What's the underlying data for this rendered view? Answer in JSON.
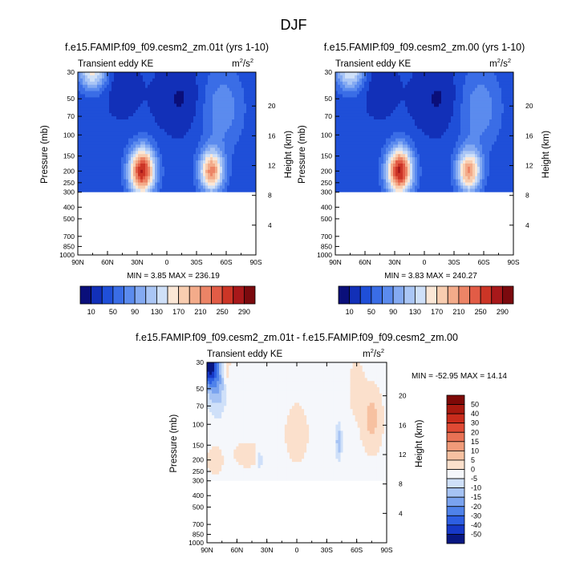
{
  "page_title": "DJF",
  "colors": {
    "top_scale": [
      "#0a0f7a",
      "#1230b8",
      "#1f4fd8",
      "#3a6de6",
      "#5b8bee",
      "#84aaf2",
      "#aac6f5",
      "#cfe0f8",
      "#fbe7d6",
      "#f8cdb0",
      "#f3ab8a",
      "#ec8466",
      "#e25c46",
      "#cc3526",
      "#a8181a",
      "#7b0a0e"
    ],
    "diff_scale": [
      "#081782",
      "#1638c7",
      "#2d5ee2",
      "#4f82ea",
      "#7aa3ef",
      "#a6c3f4",
      "#cfe0f9",
      "#f5f7fb",
      "#fbe0cc",
      "#f7c1a1",
      "#f09b79",
      "#e87255",
      "#df4a34",
      "#c92c1c",
      "#a8190f",
      "#7e0907"
    ]
  },
  "chart_data": [
    {
      "type": "heatmap",
      "name": "panel-left",
      "title": "f.e15.FAMIP.f09_f09.cesm2_zm.01t (yrs 1-10)",
      "left_label": "Transient eddy KE",
      "units_base": "m",
      "units_exp1": "2",
      "units_mid": "/s",
      "units_exp2": "2",
      "ylabel": "Pressure (mb)",
      "y2label": "Height (km)",
      "x_ticks": [
        "90N",
        "60N",
        "30N",
        "0",
        "30S",
        "60S",
        "90S"
      ],
      "y_ticks": [
        "30",
        "50",
        "70",
        "100",
        "150",
        "200",
        "250",
        "300",
        "400",
        "500",
        "700",
        "850",
        "1000"
      ],
      "y2_ticks": [
        "20",
        "16",
        "12",
        "8",
        "4"
      ],
      "min_label": "MIN =  3.85  MAX = 236.19",
      "min": 3.85,
      "max": 236.19,
      "levels": [
        10,
        30,
        50,
        70,
        90,
        110,
        130,
        150,
        170,
        190,
        210,
        230,
        250,
        270,
        290
      ],
      "colorbar_labels": [
        "10",
        "50",
        "90",
        "130",
        "170",
        "210",
        "250",
        "290"
      ],
      "peaks": [
        {
          "lat": 25,
          "p": 200,
          "value": 236
        },
        {
          "lat": -45,
          "p": 200,
          "value": 180
        },
        {
          "lat": 75,
          "p": 30,
          "value": 120
        }
      ]
    },
    {
      "type": "heatmap",
      "name": "panel-right",
      "title": "f.e15.FAMIP.f09_f09.cesm2_zm.00 (yrs 1-10)",
      "left_label": "Transient eddy KE",
      "units_base": "m",
      "units_exp1": "2",
      "units_mid": "/s",
      "units_exp2": "2",
      "ylabel": "Pressure (mb)",
      "y2label": "Height (km)",
      "x_ticks": [
        "90N",
        "60N",
        "30N",
        "0",
        "30S",
        "60S",
        "90S"
      ],
      "y_ticks": [
        "30",
        "50",
        "70",
        "100",
        "150",
        "200",
        "250",
        "300",
        "400",
        "500",
        "700",
        "850",
        "1000"
      ],
      "y2_ticks": [
        "20",
        "16",
        "12",
        "8",
        "4"
      ],
      "min_label": "MIN =  3.83  MAX = 240.27",
      "min": 3.83,
      "max": 240.27,
      "levels": [
        10,
        30,
        50,
        70,
        90,
        110,
        130,
        150,
        170,
        190,
        210,
        230,
        250,
        270,
        290
      ],
      "colorbar_labels": [
        "10",
        "50",
        "90",
        "130",
        "170",
        "210",
        "250",
        "290"
      ],
      "peaks": [
        {
          "lat": 25,
          "p": 200,
          "value": 240
        },
        {
          "lat": -45,
          "p": 200,
          "value": 175
        },
        {
          "lat": 75,
          "p": 30,
          "value": 115
        }
      ]
    },
    {
      "type": "heatmap",
      "name": "panel-diff",
      "title": "f.e15.FAMIP.f09_f09.cesm2_zm.01t - f.e15.FAMIP.f09_f09.cesm2_zm.00",
      "left_label": "Transient eddy KE",
      "units_base": "m",
      "units_exp1": "2",
      "units_mid": "/s",
      "units_exp2": "2",
      "ylabel": "Pressure (mb)",
      "y2label": "Height (km)",
      "x_ticks": [
        "90N",
        "60N",
        "30N",
        "0",
        "30S",
        "60S",
        "90S"
      ],
      "y_ticks": [
        "30",
        "50",
        "70",
        "100",
        "150",
        "200",
        "250",
        "300",
        "400",
        "500",
        "700",
        "850",
        "1000"
      ],
      "y2_ticks": [
        "20",
        "16",
        "12",
        "8",
        "4"
      ],
      "min_label": "MIN = -52.95  MAX =  14.14",
      "min": -52.95,
      "max": 14.14,
      "levels": [
        -50,
        -40,
        -30,
        -20,
        -15,
        -10,
        -5,
        0,
        5,
        10,
        15,
        20,
        30,
        40,
        50
      ],
      "colorbar_labels": [
        "50",
        "40",
        "30",
        "20",
        "15",
        "10",
        "5",
        "0",
        "-5",
        "-10",
        "-15",
        "-20",
        "-30",
        "-40",
        "-50"
      ]
    }
  ]
}
